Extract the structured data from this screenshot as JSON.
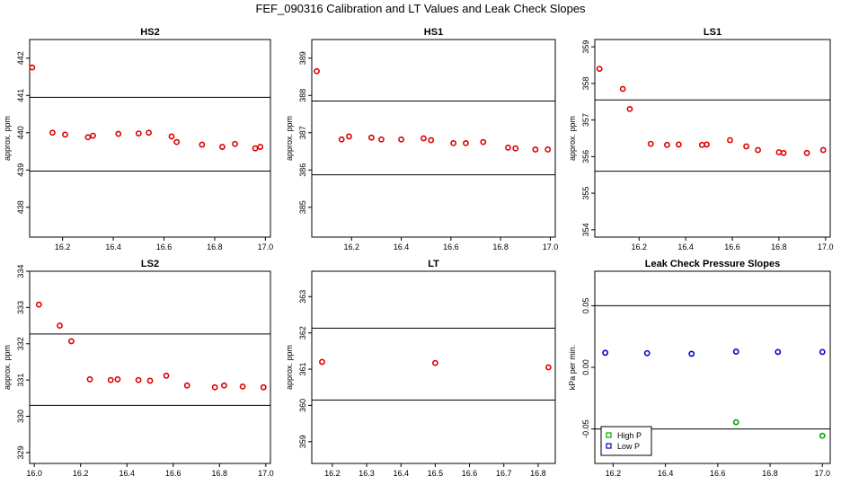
{
  "title": "FEF_090316  Calibration and LT Values and Leak Check Slopes",
  "chart_data": [
    {
      "type": "scatter",
      "title": "HS2",
      "ylabel": "approx. ppm",
      "xlim": [
        16.07,
        17.02
      ],
      "ylim": [
        437.2,
        442.5
      ],
      "xticks": [
        16.2,
        16.4,
        16.6,
        16.8,
        17.0
      ],
      "xtick_labels": [
        "16.2",
        "16.4",
        "16.6",
        "16.8",
        "17.0"
      ],
      "yticks": [
        438,
        439,
        440,
        441,
        442
      ],
      "ytick_labels": [
        "438",
        "439",
        "440",
        "441",
        "442"
      ],
      "hlines": [
        440.95,
        438.97
      ],
      "series": [
        {
          "color": "#dd0000",
          "x": [
            16.08,
            16.16,
            16.21,
            16.3,
            16.32,
            16.42,
            16.5,
            16.54,
            16.63,
            16.65,
            16.75,
            16.83,
            16.88,
            16.96,
            16.98
          ],
          "y": [
            441.75,
            440.0,
            439.95,
            439.88,
            439.92,
            439.97,
            439.98,
            440.0,
            439.9,
            439.75,
            439.68,
            439.62,
            439.7,
            439.58,
            439.62
          ]
        }
      ]
    },
    {
      "type": "scatter",
      "title": "HS1",
      "ylabel": "approx. ppm",
      "xlim": [
        16.04,
        17.02
      ],
      "ylim": [
        384.2,
        389.5
      ],
      "xticks": [
        16.2,
        16.4,
        16.6,
        16.8,
        17.0
      ],
      "xtick_labels": [
        "16.2",
        "16.4",
        "16.6",
        "16.8",
        "17.0"
      ],
      "yticks": [
        385,
        386,
        387,
        388,
        389
      ],
      "ytick_labels": [
        "385",
        "386",
        "387",
        "388",
        "389"
      ],
      "hlines": [
        387.85,
        385.87
      ],
      "series": [
        {
          "color": "#dd0000",
          "x": [
            16.06,
            16.16,
            16.19,
            16.28,
            16.32,
            16.4,
            16.49,
            16.52,
            16.61,
            16.66,
            16.73,
            16.83,
            16.86,
            16.94,
            16.99
          ],
          "y": [
            388.65,
            386.82,
            386.9,
            386.87,
            386.82,
            386.82,
            386.85,
            386.8,
            386.72,
            386.72,
            386.75,
            386.6,
            386.58,
            386.55,
            386.55
          ]
        }
      ]
    },
    {
      "type": "scatter",
      "title": "LS1",
      "ylabel": "approx. ppm",
      "xlim": [
        16.01,
        17.02
      ],
      "ylim": [
        353.8,
        359.2
      ],
      "xticks": [
        16.2,
        16.4,
        16.6,
        16.8,
        17.0
      ],
      "xtick_labels": [
        "16.2",
        "16.4",
        "16.6",
        "16.8",
        "17.0"
      ],
      "yticks": [
        354,
        355,
        356,
        357,
        358,
        359
      ],
      "ytick_labels": [
        "354",
        "355",
        "356",
        "357",
        "358",
        "359"
      ],
      "hlines": [
        357.55,
        355.6
      ],
      "series": [
        {
          "color": "#dd0000",
          "x": [
            16.03,
            16.13,
            16.16,
            16.25,
            16.32,
            16.37,
            16.47,
            16.49,
            16.59,
            16.66,
            16.71,
            16.8,
            16.82,
            16.92,
            16.99
          ],
          "y": [
            358.4,
            357.85,
            357.3,
            356.35,
            356.32,
            356.33,
            356.32,
            356.33,
            356.45,
            356.28,
            356.18,
            356.12,
            356.1,
            356.1,
            356.18
          ]
        }
      ]
    },
    {
      "type": "scatter",
      "title": "LS2",
      "ylabel": "approx. ppm",
      "xlim": [
        15.98,
        17.02
      ],
      "ylim": [
        328.7,
        334.0
      ],
      "xticks": [
        16.0,
        16.2,
        16.4,
        16.6,
        16.8,
        17.0
      ],
      "xtick_labels": [
        "16.0",
        "16.2",
        "16.4",
        "16.6",
        "16.8",
        "17.0"
      ],
      "yticks": [
        329,
        330,
        331,
        332,
        333,
        334
      ],
      "ytick_labels": [
        "329",
        "330",
        "331",
        "332",
        "333",
        "334"
      ],
      "hlines": [
        332.27,
        330.3
      ],
      "series": [
        {
          "color": "#dd0000",
          "x": [
            16.02,
            16.11,
            16.16,
            16.24,
            16.33,
            16.36,
            16.45,
            16.5,
            16.57,
            16.66,
            16.78,
            16.82,
            16.9,
            16.99
          ],
          "y": [
            333.08,
            332.5,
            332.07,
            331.02,
            331.0,
            331.02,
            331.0,
            330.98,
            331.12,
            330.85,
            330.8,
            330.85,
            330.82,
            330.8
          ]
        }
      ]
    },
    {
      "type": "scatter",
      "title": "LT",
      "ylabel": "approx. ppm",
      "xlim": [
        16.14,
        16.85
      ],
      "ylim": [
        358.4,
        363.7
      ],
      "xticks": [
        16.2,
        16.3,
        16.4,
        16.5,
        16.6,
        16.7,
        16.8
      ],
      "xtick_labels": [
        "16.2",
        "16.3",
        "16.4",
        "16.5",
        "16.6",
        "16.7",
        "16.8"
      ],
      "yticks": [
        359,
        360,
        361,
        362,
        363
      ],
      "ytick_labels": [
        "359",
        "360",
        "361",
        "362",
        "363"
      ],
      "hlines": [
        362.13,
        360.15
      ],
      "series": [
        {
          "color": "#dd0000",
          "x": [
            16.17,
            16.5,
            16.83
          ],
          "y": [
            361.2,
            361.17,
            361.05
          ]
        }
      ]
    },
    {
      "type": "scatter",
      "title": "Leak Check Pressure Slopes",
      "ylabel": "kPa per min.",
      "xlim": [
        16.13,
        17.03
      ],
      "ylim": [
        -0.078,
        0.078
      ],
      "xticks": [
        16.2,
        16.4,
        16.6,
        16.8,
        17.0
      ],
      "xtick_labels": [
        "16.2",
        "16.4",
        "16.6",
        "16.8",
        "17.0"
      ],
      "yticks": [
        -0.05,
        0.0,
        0.05
      ],
      "ytick_labels": [
        "-0.05",
        "0.00",
        "0.05"
      ],
      "hlines": [
        0.05,
        -0.05
      ],
      "legend": {
        "position": "bottom-left",
        "entries": [
          "High P",
          "Low P"
        ]
      },
      "series": [
        {
          "name": "High P",
          "color": "#00aa00",
          "x": [
            16.33,
            16.67,
            17.0
          ],
          "y": [
            -0.0565,
            -0.0445,
            -0.0555
          ]
        },
        {
          "name": "Low P",
          "color": "#0000cc",
          "x": [
            16.17,
            16.33,
            16.5,
            16.67,
            16.83,
            17.0
          ],
          "y": [
            0.0118,
            0.0115,
            0.011,
            0.0128,
            0.0125,
            0.0125
          ]
        }
      ]
    }
  ]
}
